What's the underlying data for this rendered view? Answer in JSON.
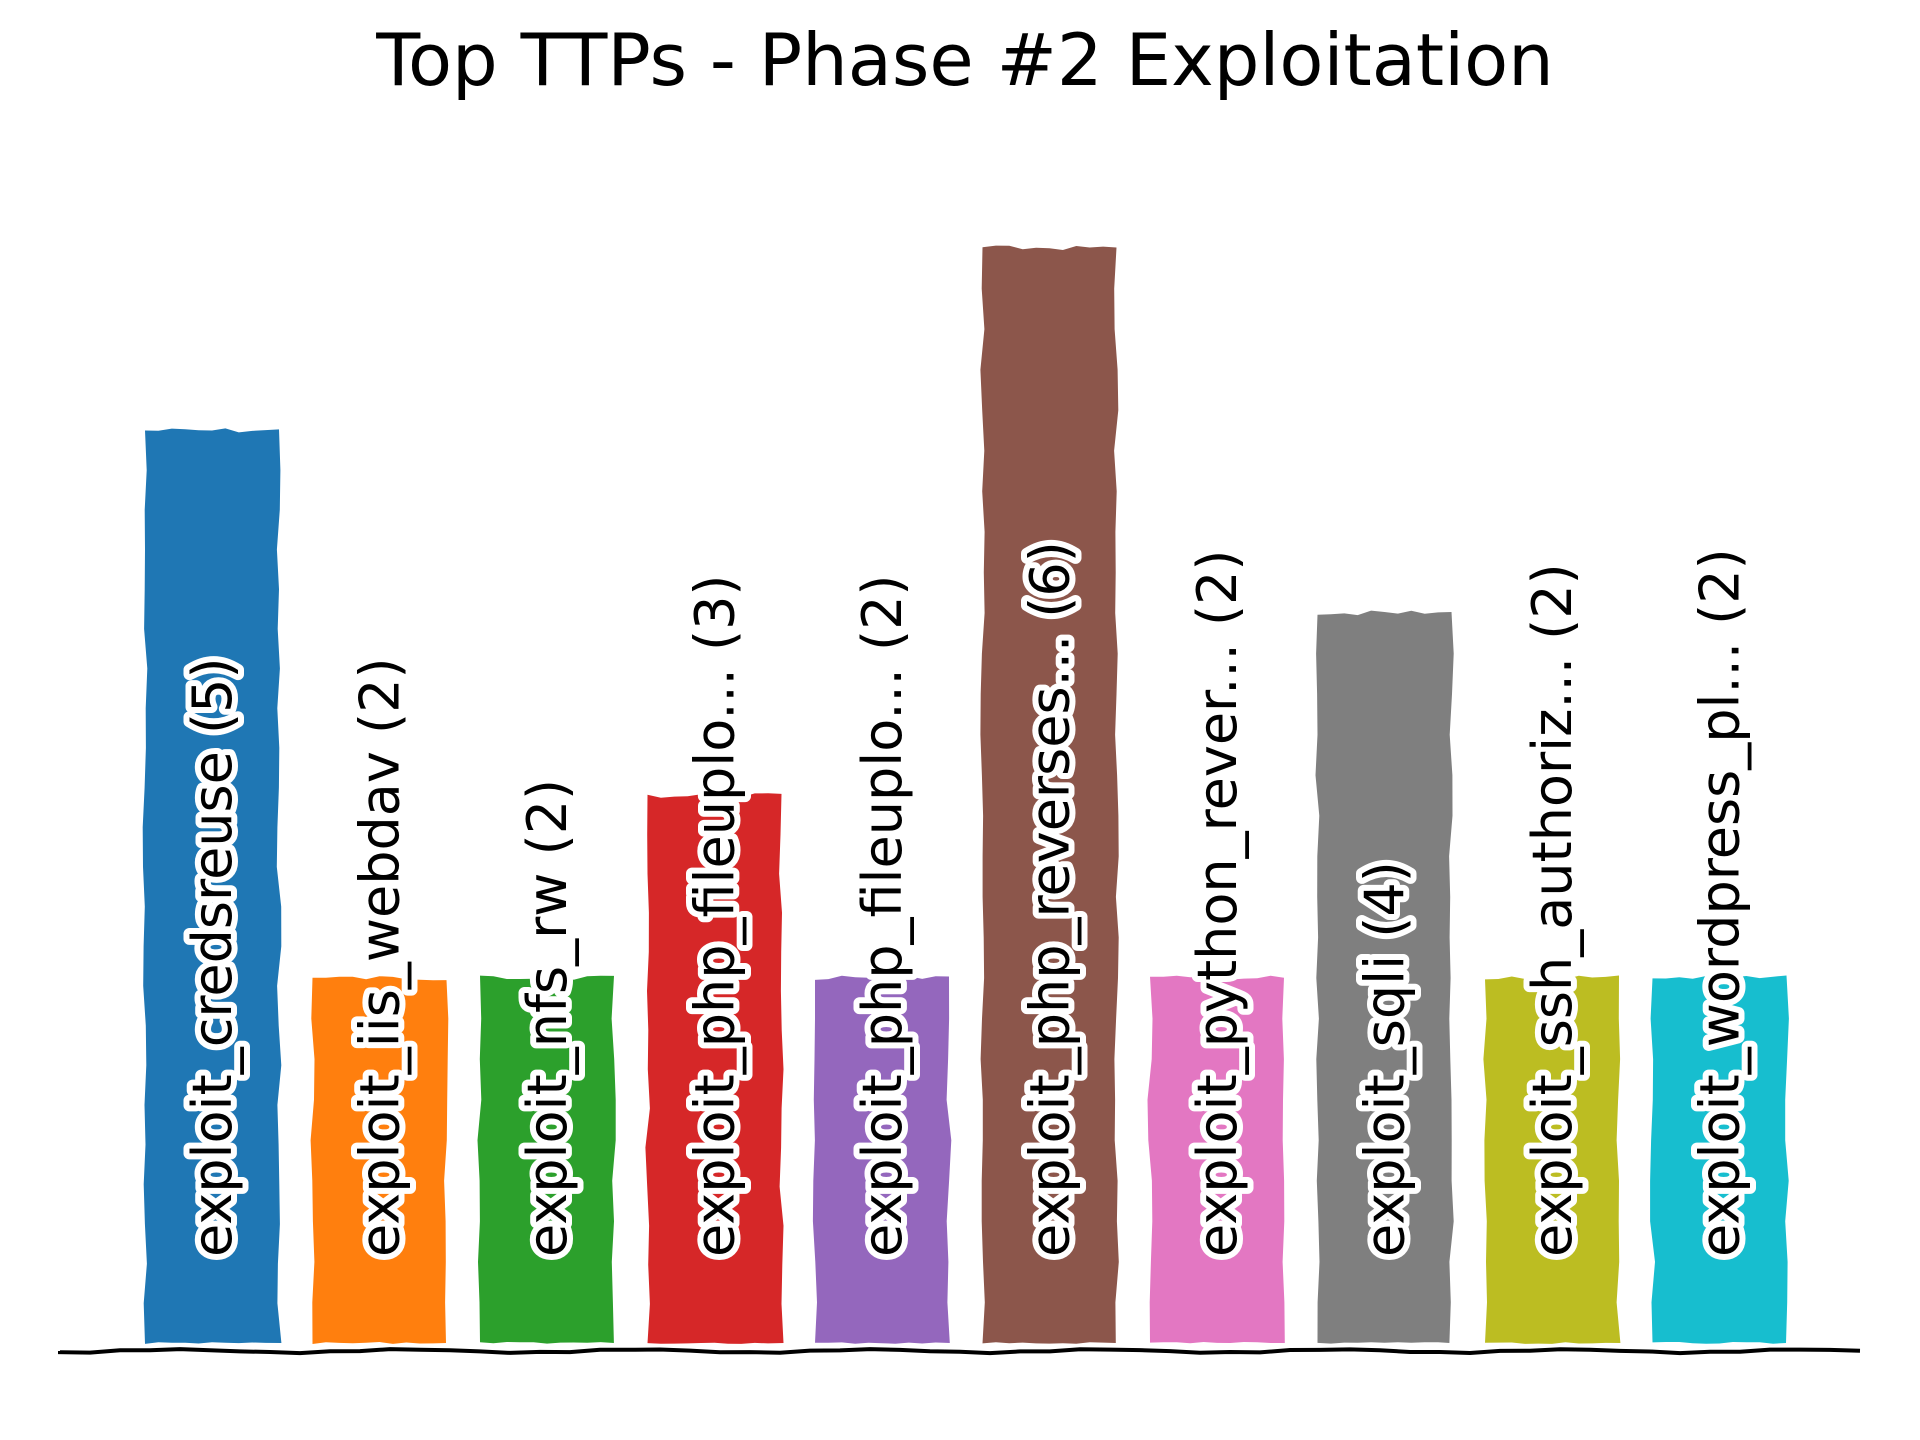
{
  "chart_data": {
    "type": "bar",
    "title": "Top TTPs - Phase #2 Exploitation",
    "xlabel": "",
    "ylabel": "",
    "ylim": [
      0,
      7.5
    ],
    "grid": false,
    "legend": "none",
    "categories": [
      "exploit_credsreuse",
      "exploit_iis_webdav",
      "exploit_nfs_rw",
      "exploit_php_fileuplo...",
      "exploit_php_fileuplo...",
      "exploit_php_reverses...",
      "exploit_python_rever...",
      "exploit_sqli",
      "exploit_ssh_authoriz...",
      "exploit_wordpress_pl..."
    ],
    "values": [
      5,
      2,
      2,
      3,
      2,
      6,
      2,
      4,
      2,
      2
    ],
    "labels": [
      "exploit_credsreuse (5)",
      "exploit_iis_webdav (2)",
      "exploit_nfs_rw (2)",
      "exploit_php_fileuplo... (3)",
      "exploit_php_fileuplo... (2)",
      "exploit_php_reverses... (6)",
      "exploit_python_rever... (2)",
      "exploit_sqli (4)",
      "exploit_ssh_authoriz... (2)",
      "exploit_wordpress_pl... (2)"
    ],
    "colors": [
      "#1f77b4",
      "#ff7f0e",
      "#2ca02c",
      "#d62728",
      "#9467bd",
      "#8c564b",
      "#e377c2",
      "#7f7f7f",
      "#bcbd22",
      "#17becf"
    ]
  }
}
